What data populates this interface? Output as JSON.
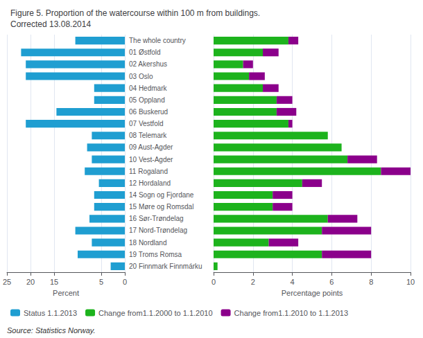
{
  "chart_data": [
    {
      "type": "bar",
      "title": "Figure 5. Proportion of the watercourse within 100 m from buildings.\nCorrected 13.08.2014",
      "annotations": [
        "Source: Statistics Norway."
      ],
      "orientation": "horizontal",
      "legend": "bottom",
      "grid": true,
      "categories": [
        "The whole country",
        "01 Østfold",
        "02 Akershus",
        "03 Oslo",
        "04 Hedmark",
        "05 Oppland",
        "06 Buskerud",
        "07 Vestfold",
        "08 Telemark",
        "09 Aust-Agder",
        "10 Vest-Agder",
        "11 Rogaland",
        "12 Hordaland",
        "14 Sogn og Fjordane",
        "15 Møre og Romsdal",
        "16 Sør-Trøndelag",
        "17 Nord-Trøndelag",
        "18 Nordland",
        "19 Troms Romsa",
        "20 Finnmark Finnmárku"
      ],
      "series": [
        {
          "name": "Status 1.1.2013",
          "color": "#1f9ed1",
          "values": [
            10.5,
            22.0,
            21.0,
            21.0,
            6.5,
            6.5,
            14.5,
            21.0,
            7.0,
            8.0,
            7.0,
            8.5,
            5.5,
            6.5,
            6.5,
            7.5,
            10.5,
            7.0,
            10.0,
            3.0
          ]
        }
      ],
      "xlabel": "Percent",
      "xlim": [
        25,
        0
      ],
      "xticks": [
        25,
        20,
        15,
        5,
        0
      ]
    },
    {
      "type": "bar",
      "orientation": "horizontal",
      "stacked": true,
      "grid": true,
      "tick_labels": "x",
      "categories": [
        "The whole country",
        "01 Østfold",
        "02 Akershus",
        "03 Oslo",
        "04 Hedmark",
        "05 Oppland",
        "06 Buskerud",
        "07 Vestfold",
        "08 Telemark",
        "09 Aust-Agder",
        "10 Vest-Agder",
        "11 Rogaland",
        "12 Hordaland",
        "14 Sogn og Fjordane",
        "15 Møre og Romsdal",
        "16 Sør-Trøndelag",
        "17 Nord-Trøndelag",
        "18 Nordland",
        "19 Troms Romsa",
        "20 Finnmark Finnmárku"
      ],
      "series": [
        {
          "name": "Change from1.1.2000 to 1.1.2010",
          "color": "#1db31d",
          "values": [
            3.8,
            2.5,
            1.5,
            1.8,
            2.5,
            3.2,
            3.2,
            3.8,
            5.8,
            6.5,
            6.8,
            8.5,
            4.5,
            3.0,
            3.0,
            5.8,
            5.5,
            2.8,
            5.5,
            0.2
          ]
        },
        {
          "name": "Change from1.1.2010 to 1.1.2013",
          "color": "#8b008b",
          "values": [
            0.5,
            0.8,
            0.5,
            0.8,
            0.8,
            0.8,
            1.0,
            0.2,
            0.0,
            0.0,
            1.5,
            1.5,
            1.0,
            1.0,
            1.0,
            1.5,
            2.5,
            1.5,
            2.5,
            0.0
          ]
        }
      ],
      "xlabel": "Percentage points",
      "xlim": [
        0,
        10
      ],
      "xticks": [
        0,
        2,
        4,
        6,
        8,
        10
      ]
    }
  ]
}
